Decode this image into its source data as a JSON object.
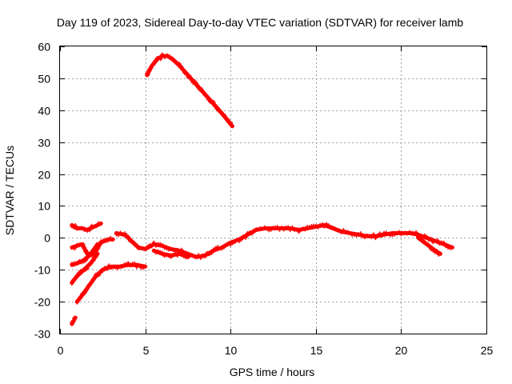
{
  "chart_data": {
    "type": "scatter",
    "title": "Day 119 of 2023, Sidereal Day-to-day VTEC variation (SDTVAR) for receiver lamb",
    "xlabel": "GPS time / hours",
    "ylabel": "SDTVAR / TECUs",
    "xlim": [
      0,
      25
    ],
    "ylim": [
      -30,
      60
    ],
    "xticks": [
      "0",
      "5",
      "10",
      "15",
      "20",
      "25"
    ],
    "yticks": [
      "60",
      "50",
      "40",
      "30",
      "20",
      "10",
      "0",
      "-10",
      "-20",
      "-30"
    ],
    "grid": true,
    "marker_color": "#ff0000",
    "series": [
      {
        "name": "arc-high",
        "x": [
          5.1,
          5.4,
          5.7,
          6.0,
          6.3,
          6.6,
          7.0,
          7.5,
          8.0,
          8.5,
          9.0,
          9.5,
          10.1
        ],
        "y": [
          51,
          54,
          56,
          57,
          57,
          56,
          54,
          51,
          48,
          45,
          42,
          39,
          35
        ]
      },
      {
        "name": "arc-upper-left",
        "x": [
          0.7,
          1.0,
          1.3,
          1.6,
          2.0,
          2.4
        ],
        "y": [
          4,
          3,
          3,
          2.5,
          3.5,
          4.5
        ]
      },
      {
        "name": "arc-left-a",
        "x": [
          0.7,
          1.0,
          1.3,
          1.6,
          2.0,
          2.4,
          2.8,
          3.1
        ],
        "y": [
          -3,
          -2.5,
          -2,
          -5,
          -5,
          -1.5,
          -0.5,
          -0.5
        ]
      },
      {
        "name": "arc-left-b",
        "x": [
          0.7,
          1.0,
          1.4,
          1.8,
          2.2
        ],
        "y": [
          -8.5,
          -8,
          -7,
          -5,
          -2
        ]
      },
      {
        "name": "arc-left-c",
        "x": [
          0.7,
          1.0,
          1.4,
          1.8,
          2.2
        ],
        "y": [
          -14,
          -12,
          -10,
          -8,
          -5
        ]
      },
      {
        "name": "arc-left-d",
        "x": [
          1.0,
          1.3,
          1.7,
          2.1,
          2.5,
          3.0,
          3.5,
          4.0,
          4.5,
          5.0
        ],
        "y": [
          -20,
          -18,
          -15,
          -12,
          -10,
          -9,
          -9,
          -8.5,
          -8.5,
          -9
        ]
      },
      {
        "name": "arc-bottom",
        "x": [
          0.7,
          0.9
        ],
        "y": [
          -27,
          -25
        ]
      },
      {
        "name": "arc-main",
        "x": [
          3.3,
          3.8,
          4.2,
          4.6,
          5.0,
          5.5,
          6.0,
          6.5,
          7.0,
          7.5,
          8.0,
          8.5,
          9.0,
          9.5,
          10.0,
          10.5,
          11.0,
          11.5,
          12.0,
          12.5,
          13.0,
          13.5,
          14.0,
          14.5,
          15.0,
          15.5,
          16.0,
          16.5,
          17.0,
          17.5,
          18.0,
          18.5,
          19.0,
          19.5,
          20.0,
          20.5,
          21.0,
          21.5,
          22.0,
          22.5,
          23.0
        ],
        "y": [
          1.5,
          1,
          -1,
          -3,
          -3.5,
          -2,
          -2.5,
          -3.5,
          -4,
          -5,
          -6,
          -5.5,
          -4,
          -3,
          -1.5,
          -0.5,
          1,
          2.5,
          3,
          3,
          3,
          3,
          2.5,
          3,
          3.5,
          4,
          3,
          2,
          1.5,
          1,
          0.5,
          0.5,
          1,
          1.5,
          1.5,
          1.5,
          1,
          0,
          -1,
          -2,
          -3
        ]
      },
      {
        "name": "arc-dip",
        "x": [
          5.5,
          6.0,
          6.5,
          7.0,
          7.5
        ],
        "y": [
          -4,
          -5,
          -5.5,
          -5,
          -6
        ]
      },
      {
        "name": "arc-right-tail",
        "x": [
          21.0,
          21.5,
          22.0,
          22.3
        ],
        "y": [
          0,
          -2,
          -4,
          -5
        ]
      }
    ]
  }
}
